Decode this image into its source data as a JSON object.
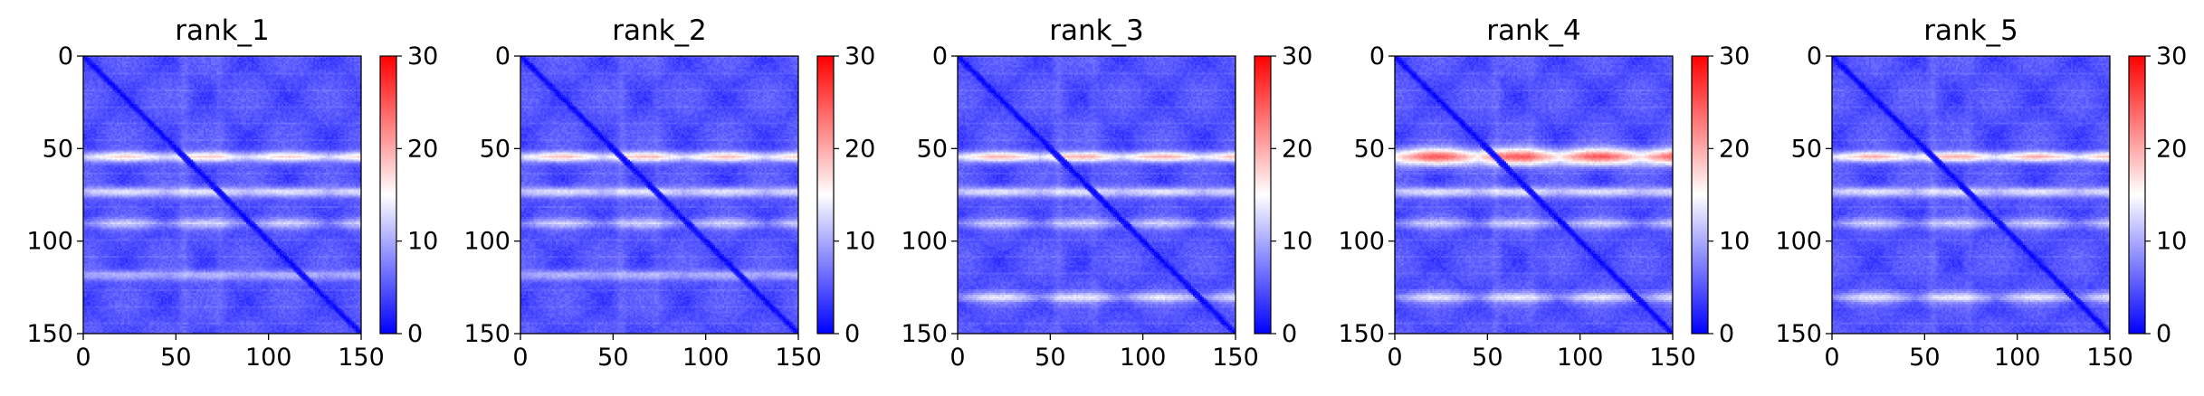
{
  "chart_data": [
    {
      "type": "heatmap",
      "title": "rank_1",
      "xlim": [
        0,
        150
      ],
      "ylim": [
        150,
        0
      ],
      "x_ticks": [
        0,
        50,
        100,
        150
      ],
      "y_ticks": [
        0,
        50,
        100,
        150
      ],
      "colorbar": {
        "min": 0,
        "max": 30,
        "ticks": [
          0,
          10,
          20,
          30
        ],
        "colormap": "bwr"
      },
      "bright_bands": [
        {
          "row": 54,
          "level": 15,
          "width": 2.0
        },
        {
          "row": 73,
          "level": 12,
          "width": 2.0
        },
        {
          "row": 90,
          "level": 9,
          "width": 2.0
        },
        {
          "row": 118,
          "level": 9,
          "width": 2.0
        }
      ],
      "diagonal_level": 0
    },
    {
      "type": "heatmap",
      "title": "rank_2",
      "xlim": [
        0,
        150
      ],
      "ylim": [
        150,
        0
      ],
      "x_ticks": [
        0,
        50,
        100,
        150
      ],
      "y_ticks": [
        0,
        50,
        100,
        150
      ],
      "colorbar": {
        "min": 0,
        "max": 30,
        "ticks": [
          0,
          10,
          20,
          30
        ],
        "colormap": "bwr"
      },
      "bright_bands": [
        {
          "row": 54,
          "level": 16,
          "width": 2.0
        },
        {
          "row": 73,
          "level": 12,
          "width": 2.0
        },
        {
          "row": 90,
          "level": 9,
          "width": 2.0
        },
        {
          "row": 118,
          "level": 9,
          "width": 2.0
        }
      ],
      "diagonal_level": 0
    },
    {
      "type": "heatmap",
      "title": "rank_3",
      "xlim": [
        0,
        150
      ],
      "ylim": [
        150,
        0
      ],
      "x_ticks": [
        0,
        50,
        100,
        150
      ],
      "y_ticks": [
        0,
        50,
        100,
        150
      ],
      "colorbar": {
        "min": 0,
        "max": 30,
        "ticks": [
          0,
          10,
          20,
          30
        ],
        "colormap": "bwr"
      },
      "bright_bands": [
        {
          "row": 54,
          "level": 17,
          "width": 2.0
        },
        {
          "row": 73,
          "level": 12,
          "width": 2.0
        },
        {
          "row": 90,
          "level": 9,
          "width": 2.0
        },
        {
          "row": 130,
          "level": 11,
          "width": 2.0
        }
      ],
      "diagonal_level": 0
    },
    {
      "type": "heatmap",
      "title": "rank_4",
      "xlim": [
        0,
        150
      ],
      "ylim": [
        150,
        0
      ],
      "x_ticks": [
        0,
        50,
        100,
        150
      ],
      "y_ticks": [
        0,
        50,
        100,
        150
      ],
      "colorbar": {
        "min": 0,
        "max": 30,
        "ticks": [
          0,
          10,
          20,
          30
        ],
        "colormap": "bwr"
      },
      "bright_bands": [
        {
          "row": 54,
          "level": 22,
          "width": 3.2
        },
        {
          "row": 73,
          "level": 12,
          "width": 2.0
        },
        {
          "row": 90,
          "level": 9,
          "width": 2.0
        },
        {
          "row": 130,
          "level": 11,
          "width": 2.0
        }
      ],
      "diagonal_level": 0
    },
    {
      "type": "heatmap",
      "title": "rank_5",
      "xlim": [
        0,
        150
      ],
      "ylim": [
        150,
        0
      ],
      "x_ticks": [
        0,
        50,
        100,
        150
      ],
      "y_ticks": [
        0,
        50,
        100,
        150
      ],
      "colorbar": {
        "min": 0,
        "max": 30,
        "ticks": [
          0,
          10,
          20,
          30
        ],
        "colormap": "bwr"
      },
      "bright_bands": [
        {
          "row": 54,
          "level": 17,
          "width": 2.0
        },
        {
          "row": 73,
          "level": 12,
          "width": 2.0
        },
        {
          "row": 90,
          "level": 9,
          "width": 2.0
        },
        {
          "row": 130,
          "level": 11,
          "width": 2.0
        }
      ],
      "diagonal_level": 0
    }
  ]
}
